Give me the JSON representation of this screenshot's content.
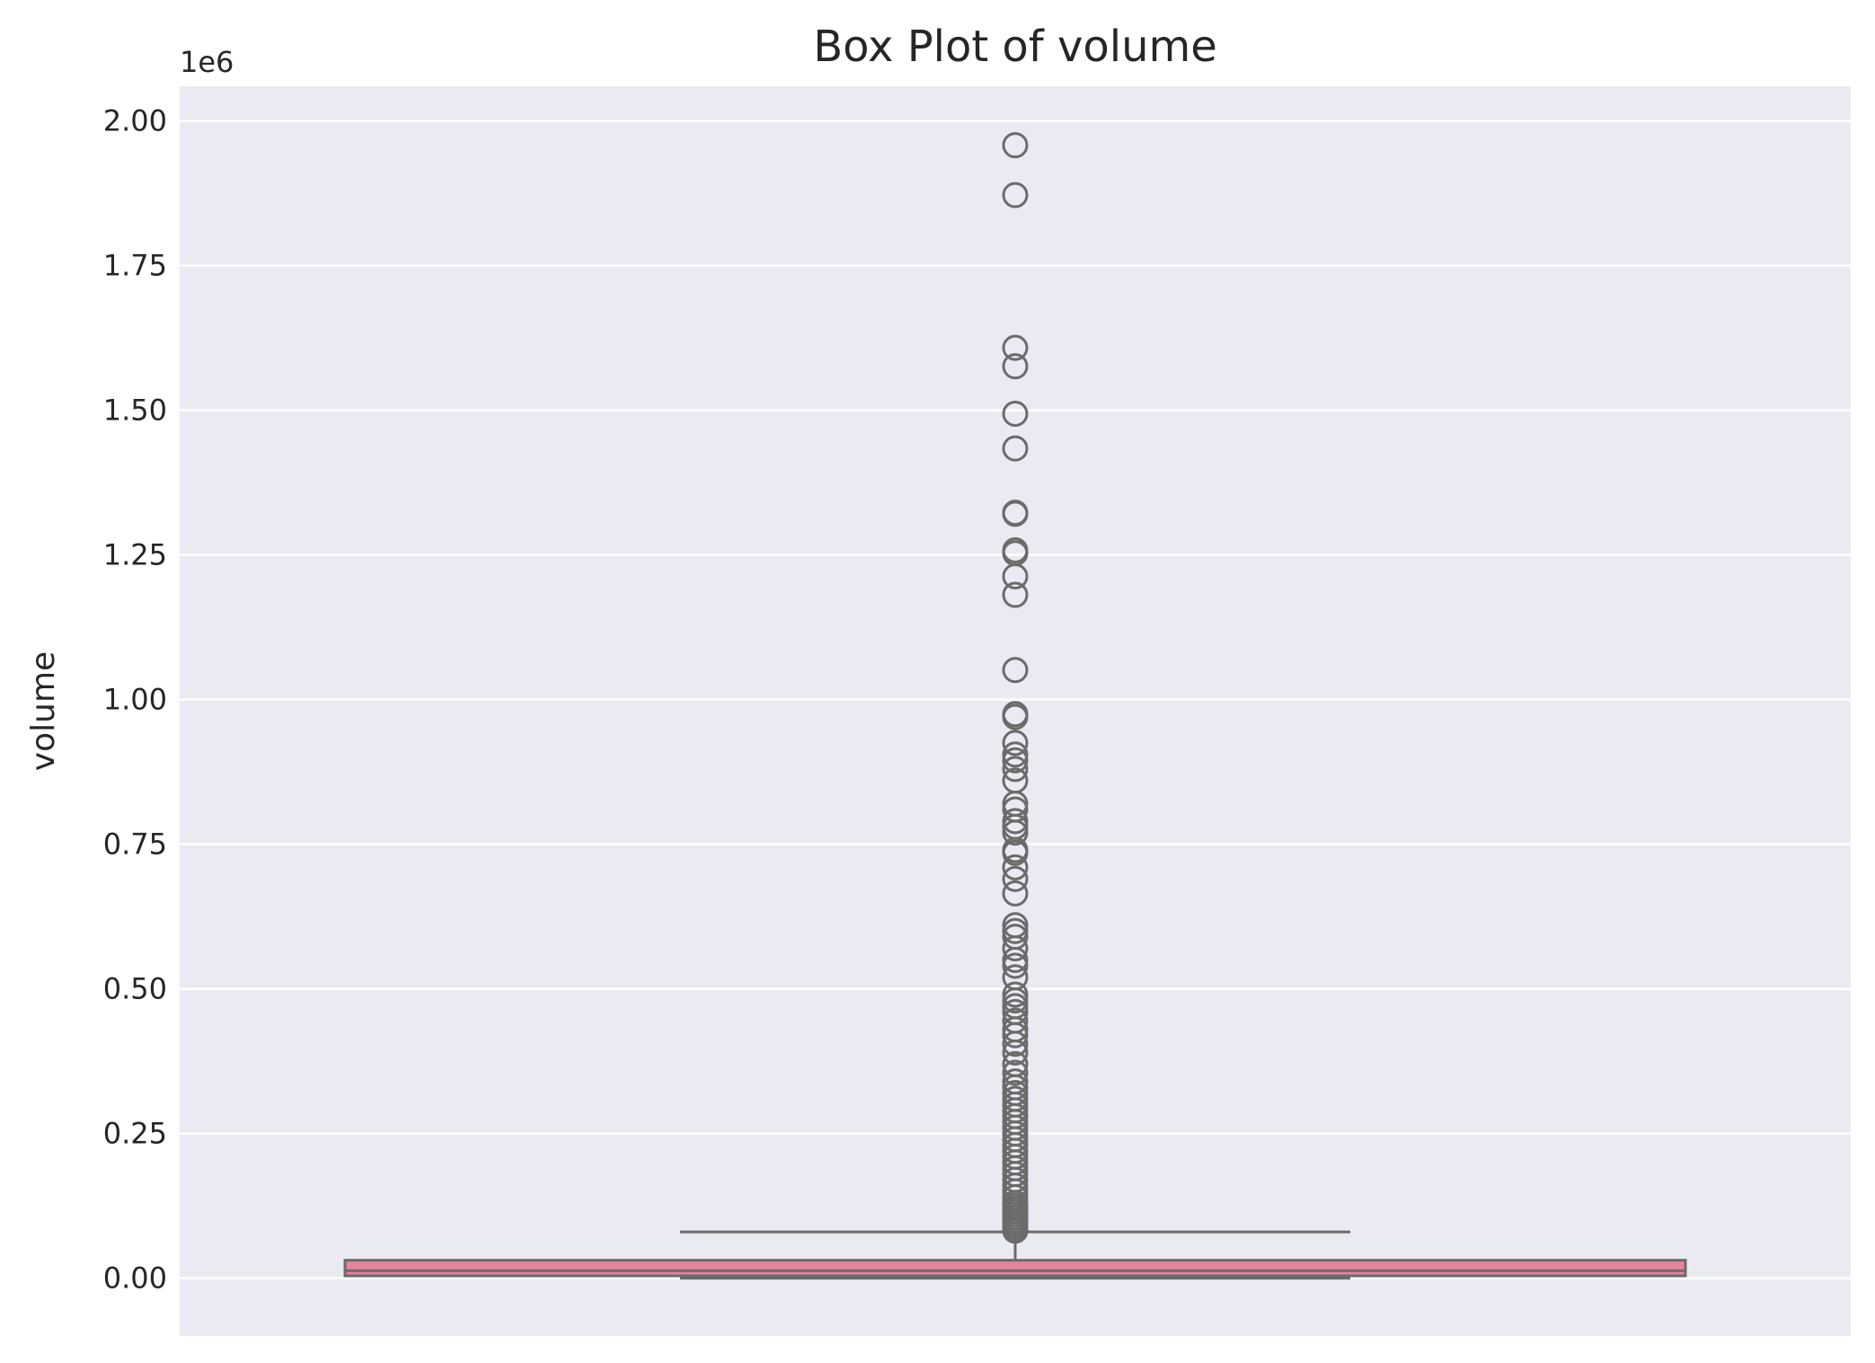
{
  "chart_data": {
    "type": "box",
    "title": "Box Plot of volume",
    "xlabel": "",
    "ylabel": "volume",
    "y_offset_label": "1e6",
    "ylim": [
      -0.1,
      2.06
    ],
    "y_ticks": [
      0.0,
      0.25,
      0.5,
      0.75,
      1.0,
      1.25,
      1.5,
      1.75,
      2.0
    ],
    "y_tick_labels": [
      "0.00",
      "0.25",
      "0.50",
      "0.75",
      "1.00",
      "1.25",
      "1.50",
      "1.75",
      "2.00"
    ],
    "grid": true,
    "colors": {
      "background": "#eaeaf2",
      "grid": "#ffffff",
      "box_fill": "#e8829a",
      "box_edge": "#6b6b6b",
      "flier_edge": "#6b6b6b"
    },
    "box": {
      "whisker_low": 0.0,
      "q1": 0.004,
      "median": 0.013,
      "q3": 0.031,
      "whisker_high": 0.08
    },
    "outliers": [
      1.958,
      1.872,
      1.608,
      1.576,
      1.494,
      1.434,
      1.323,
      1.321,
      1.258,
      1.253,
      1.213,
      1.181,
      1.051,
      0.975,
      0.97,
      0.925,
      0.905,
      0.895,
      0.88,
      0.86,
      0.82,
      0.81,
      0.79,
      0.78,
      0.77,
      0.74,
      0.735,
      0.71,
      0.69,
      0.665,
      0.61,
      0.6,
      0.59,
      0.57,
      0.55,
      0.54,
      0.52,
      0.49,
      0.48,
      0.47,
      0.46,
      0.445,
      0.43,
      0.42,
      0.405,
      0.39,
      0.37,
      0.355,
      0.34,
      0.33,
      0.32,
      0.31,
      0.3,
      0.29,
      0.28,
      0.27,
      0.26,
      0.25,
      0.24,
      0.23,
      0.22,
      0.21,
      0.2,
      0.19,
      0.18,
      0.17,
      0.16,
      0.15,
      0.14,
      0.13,
      0.125,
      0.12,
      0.115,
      0.11,
      0.105,
      0.1,
      0.095,
      0.09,
      0.085,
      0.082
    ]
  }
}
